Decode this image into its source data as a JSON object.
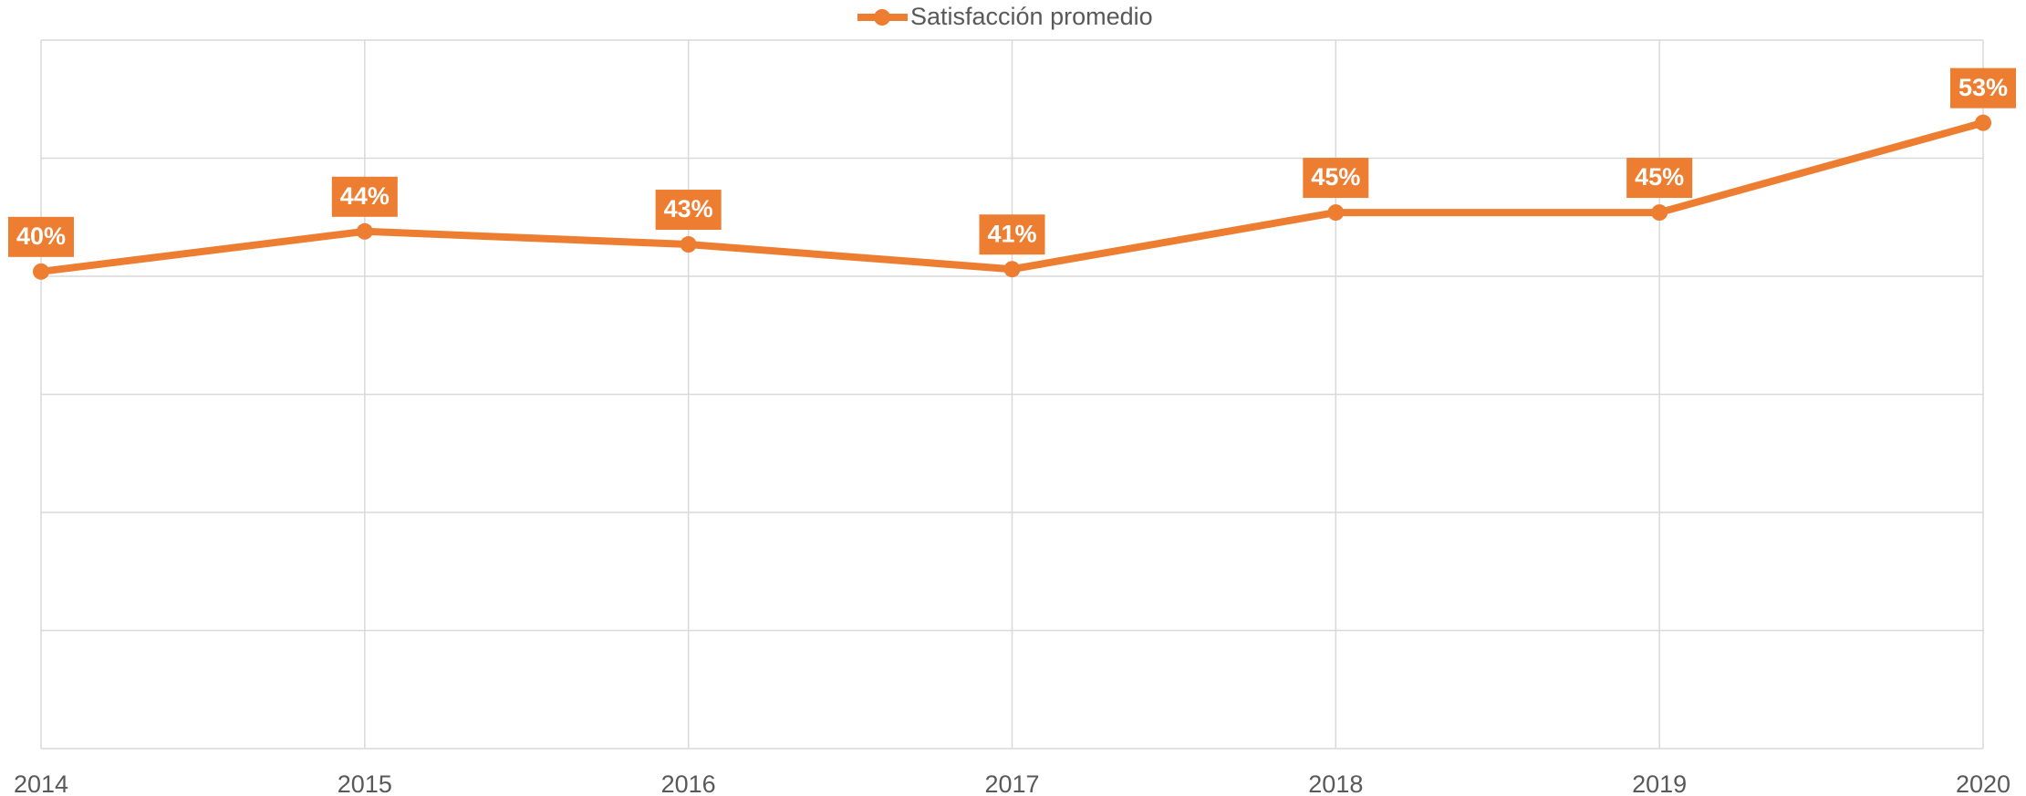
{
  "chart_data": {
    "type": "line",
    "categories": [
      "2014",
      "2015",
      "2016",
      "2017",
      "2018",
      "2019",
      "2020"
    ],
    "series": [
      {
        "name": "Satisfacción promedio",
        "color": "#ed7d31",
        "values": [
          40.4,
          43.8,
          42.7,
          40.6,
          45.4,
          45.4,
          53.0
        ],
        "value_labels": [
          "40%",
          "44%",
          "43%",
          "41%",
          "45%",
          "45%",
          "53%"
        ]
      }
    ],
    "ylim": [
      0,
      60
    ],
    "yticks": [
      0,
      10,
      20,
      30,
      40,
      50,
      60
    ],
    "grid": true,
    "legend": "top"
  }
}
